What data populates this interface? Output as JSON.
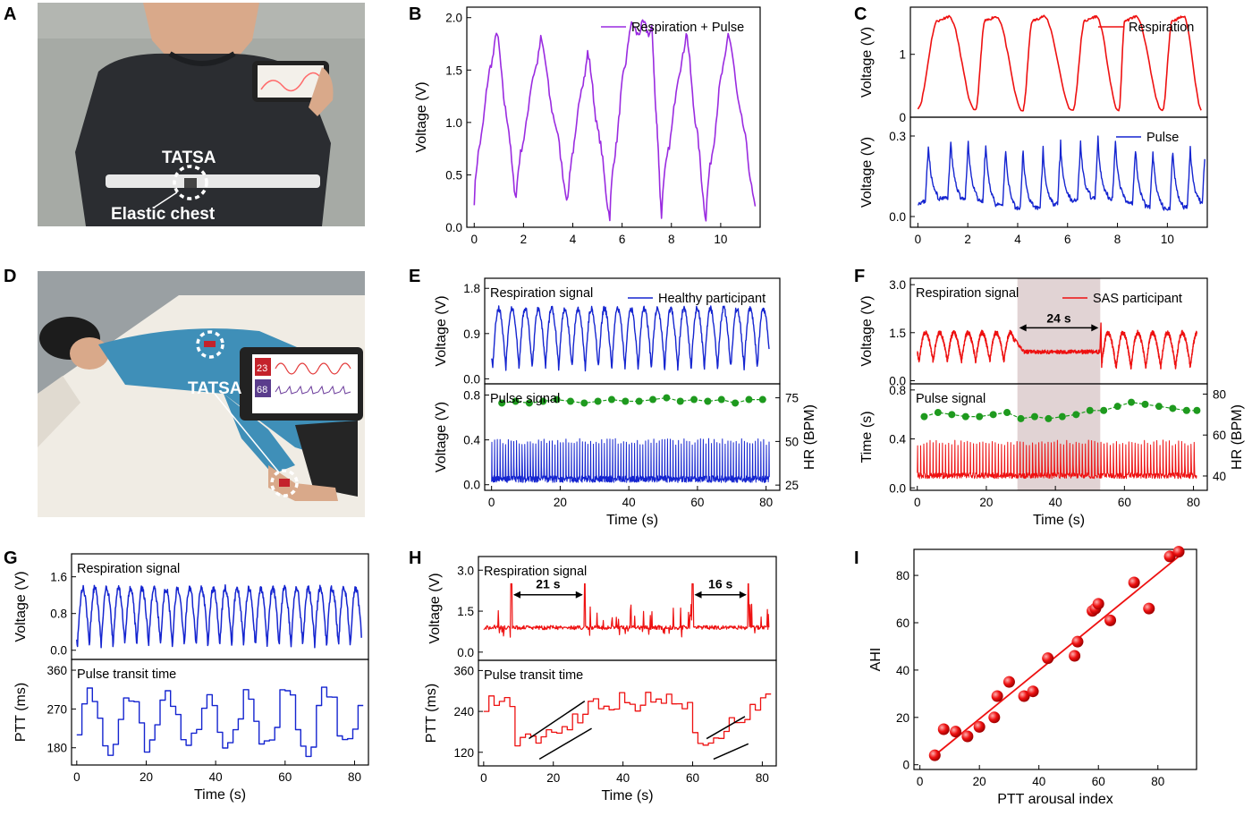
{
  "panel_letters": [
    "A",
    "B",
    "C",
    "D",
    "E",
    "F",
    "G",
    "H",
    "I"
  ],
  "photo_a": {
    "device_label": "TATSA",
    "belt_label": "Elastic chest",
    "colors": {
      "shirt": "#2b2d31",
      "wall": "#a6aaa5",
      "belt": "#e8e8e8",
      "skin": "#d9a98a"
    }
  },
  "photo_d": {
    "device_label": "TATSA",
    "phone_values": [
      "23",
      "68"
    ],
    "colors": {
      "shirt": "#3f8fb8",
      "bed": "#f0ece4",
      "wall": "#9aa0a3",
      "phone": "#222222"
    }
  },
  "colors": {
    "purple": "#9a2be0",
    "red": "#ee1111",
    "blue": "#1525d0",
    "green": "#1e9a1e",
    "shade": "#c9aeb0"
  },
  "chart_data": [
    {
      "id": "B",
      "type": "line",
      "signal": "sawtooth",
      "legend": "Respiration + Pulse",
      "ylabel": "Voltage (V)",
      "xlabel": "",
      "xlim": [
        -0.3,
        11.6
      ],
      "ylim": [
        0,
        2.1
      ],
      "xticks": [
        0,
        2,
        4,
        6,
        8,
        10
      ],
      "yticks": [
        0.0,
        0.5,
        1.0,
        1.5,
        2.0
      ],
      "ytick_labels": [
        "0.0",
        "0.5",
        "1.0",
        "1.5",
        "2.0"
      ],
      "peaks_x": [
        0.9,
        2.7,
        4.6,
        6.3,
        7.2,
        8.6,
        10.3
      ],
      "peaks_y": [
        1.88,
        1.8,
        1.67,
        1.88,
        1.9,
        1.87,
        1.86
      ],
      "troughs_x": [
        0,
        1.7,
        3.8,
        5.5,
        7.6,
        9.4,
        11.4
      ],
      "troughs_y": [
        0.25,
        0.28,
        0.25,
        0.1,
        0.12,
        0.08,
        0.2
      ]
    },
    {
      "id": "C1",
      "type": "line",
      "signal": "respiration",
      "legend": "Respiration",
      "ylabel": "Voltage (V)",
      "xlabel": "",
      "xlim": [
        -0.3,
        11.6
      ],
      "ylim": [
        0,
        1.75
      ],
      "yticks": [
        0,
        1
      ],
      "ytick_labels": [
        "0",
        "1"
      ],
      "peaks_x": [
        1.0,
        2.9,
        4.8,
        6.9,
        8.5,
        10.4
      ],
      "peak_value": 1.6,
      "trough_value": 0.15
    },
    {
      "id": "C2",
      "type": "line",
      "signal": "pulse",
      "legend": "Pulse",
      "ylabel": "Voltage (V)",
      "xlabel": "",
      "xlim": [
        -0.3,
        11.6
      ],
      "ylim": [
        -0.04,
        0.37
      ],
      "xticks": [
        0,
        2,
        4,
        6,
        8,
        10
      ],
      "yticks": [
        0.0,
        0.3
      ],
      "ytick_labels": [
        "0.0",
        "0.3"
      ],
      "beats_x": [
        0.3,
        1.2,
        1.9,
        2.6,
        3.4,
        4.1,
        4.9,
        5.6,
        6.4,
        7.1,
        7.8,
        8.6,
        9.3,
        10.1,
        10.8,
        11.4
      ],
      "peak_value": 0.28,
      "baseline": 0.05
    },
    {
      "id": "E1",
      "type": "line",
      "signal": "respiration",
      "inset": "Respiration signal",
      "legend": "Healthy participant",
      "ylabel": "Voltage (V)",
      "xlabel": "",
      "xlim": [
        -2,
        84
      ],
      "ylim": [
        -0.1,
        2.0
      ],
      "yticks": [
        0.0,
        0.9,
        1.8
      ],
      "ytick_labels": [
        "0.0",
        "0.9",
        "1.8"
      ],
      "cycles": 21,
      "peak_value": 1.4,
      "trough_value": 0.2
    },
    {
      "id": "E2",
      "type": "line",
      "signal": "pulse",
      "inset": "Pulse signal",
      "ylabel": "Voltage (V)",
      "ylabel_right": "HR (BPM)",
      "xlabel": "Time (s)",
      "xlim": [
        -2,
        84
      ],
      "ylim": [
        -0.05,
        0.9
      ],
      "xticks": [
        0,
        20,
        40,
        60,
        80
      ],
      "yticks": [
        0.0,
        0.4,
        0.8
      ],
      "ytick_labels": [
        "0.0",
        "0.4",
        "0.8"
      ],
      "y2lim": [
        22,
        83
      ],
      "y2ticks": [
        25,
        50,
        75
      ],
      "beat_period": 0.8,
      "peak_value": 0.55,
      "baseline": 0.05,
      "hr_x": [
        3,
        7,
        11,
        15,
        19,
        23,
        27,
        31,
        35,
        39,
        43,
        47,
        51,
        55,
        59,
        63,
        67,
        71,
        75,
        79
      ],
      "hr_y": [
        72,
        73,
        72,
        73,
        74,
        73,
        72,
        73,
        74,
        73,
        73,
        74,
        75,
        73,
        74,
        73,
        74,
        72,
        74,
        74
      ]
    },
    {
      "id": "F1",
      "type": "line",
      "signal": "respiration",
      "inset": "Respiration signal",
      "legend": "SAS participant",
      "ylabel": "Voltage (V)",
      "xlabel": "",
      "xlim": [
        -2,
        84
      ],
      "ylim": [
        -0.1,
        3.2
      ],
      "yticks": [
        0.0,
        1.5,
        3.0
      ],
      "ytick_labels": [
        "0.0",
        "1.5",
        "3.0"
      ],
      "apnea": [
        29,
        53
      ],
      "gap_label": "24 s",
      "peak_value": 1.5,
      "trough_value": 0.6,
      "apnea_value": 0.9
    },
    {
      "id": "F2",
      "type": "line",
      "signal": "pulse",
      "inset": "Pulse signal",
      "ylabel": "Time (s)",
      "ylabel_right": "HR (BPM)",
      "xlabel": "Time (s)",
      "xlim": [
        -2,
        84
      ],
      "ylim": [
        -0.02,
        0.85
      ],
      "xticks": [
        0,
        20,
        40,
        60,
        80
      ],
      "yticks": [
        0.0,
        0.4,
        0.8
      ],
      "ytick_labels": [
        "0.0",
        "0.4",
        "0.8"
      ],
      "y2lim": [
        33,
        85
      ],
      "y2ticks": [
        40,
        60,
        80
      ],
      "apnea": [
        29,
        53
      ],
      "beat_period": 0.9,
      "peak_value": 0.5,
      "baseline": 0.1,
      "hr_x": [
        2,
        6,
        10,
        14,
        18,
        22,
        26,
        30,
        34,
        38,
        42,
        46,
        50,
        54,
        58,
        62,
        66,
        70,
        74,
        78,
        81
      ],
      "hr_y": [
        69,
        71,
        70,
        69,
        69,
        70,
        71,
        68,
        69,
        68,
        69,
        70,
        72,
        72,
        74,
        76,
        75,
        74,
        73,
        72,
        72
      ]
    },
    {
      "id": "G1",
      "type": "line",
      "signal": "respiration",
      "inset": "Respiration signal",
      "ylabel": "Voltage (V)",
      "xlabel": "",
      "xlim": [
        -1.5,
        84
      ],
      "ylim": [
        -0.2,
        2.1
      ],
      "yticks": [
        0.0,
        0.8,
        1.6
      ],
      "ytick_labels": [
        "0.0",
        "0.8",
        "1.6"
      ],
      "cycles": 24,
      "peak_value": 1.35,
      "trough_value": 0.1
    },
    {
      "id": "G2",
      "type": "line",
      "signal": "steps",
      "inset": "Pulse transit time",
      "ylabel": "PTT (ms)",
      "xlabel": "Time (s)",
      "xlim": [
        -1.5,
        84
      ],
      "ylim": [
        140,
        385
      ],
      "xticks": [
        0,
        20,
        40,
        60,
        80
      ],
      "yticks": [
        180,
        270,
        360
      ],
      "ytick_labels": [
        "180",
        "270",
        "360"
      ],
      "step_seconds": 1.5,
      "low": 170,
      "high": 310
    },
    {
      "id": "H1",
      "type": "line",
      "signal": "spikes",
      "inset": "Respiration signal",
      "ylabel": "Voltage (V)",
      "xlabel": "",
      "xlim": [
        -1.5,
        84
      ],
      "ylim": [
        -0.3,
        3.5
      ],
      "yticks": [
        0.0,
        1.5,
        3.0
      ],
      "ytick_labels": [
        "0.0",
        "1.5",
        "3.0"
      ],
      "gaps": [
        [
          8,
          29
        ],
        [
          60,
          76
        ]
      ],
      "gap_labels": [
        "21 s",
        "16 s"
      ],
      "baseline": 0.9
    },
    {
      "id": "H2",
      "type": "line",
      "signal": "steps",
      "inset": "Pulse transit time",
      "ylabel": "PTT (ms)",
      "xlabel": "Time (s)",
      "xlim": [
        -1.5,
        84
      ],
      "ylim": [
        80,
        390
      ],
      "xticks": [
        0,
        20,
        40,
        60,
        80
      ],
      "yticks": [
        120,
        240,
        360
      ],
      "ytick_labels": [
        "120",
        "240",
        "360"
      ],
      "gaps": [
        [
          8,
          29
        ],
        [
          60,
          76
        ]
      ],
      "step_seconds": 1.5
    },
    {
      "id": "I",
      "type": "scatter",
      "ylabel": "AHI",
      "xlabel": "PTT arousal index",
      "xlim": [
        -2,
        93
      ],
      "ylim": [
        -2,
        91
      ],
      "xticks": [
        0,
        20,
        40,
        60,
        80
      ],
      "yticks": [
        0,
        20,
        40,
        60,
        80
      ],
      "ytick_labels": [
        "0",
        "20",
        "40",
        "60",
        "80"
      ],
      "x": [
        5,
        8,
        12,
        16,
        20,
        25,
        26,
        30,
        35,
        38,
        43,
        52,
        53,
        58,
        59,
        60,
        64,
        72,
        77,
        84,
        87
      ],
      "y": [
        4,
        15,
        14,
        12,
        16,
        20,
        29,
        35,
        29,
        31,
        45,
        46,
        52,
        65,
        66,
        68,
        61,
        77,
        66,
        88,
        90
      ],
      "fit": [
        [
          5,
          4
        ],
        [
          88,
          89
        ]
      ]
    }
  ]
}
